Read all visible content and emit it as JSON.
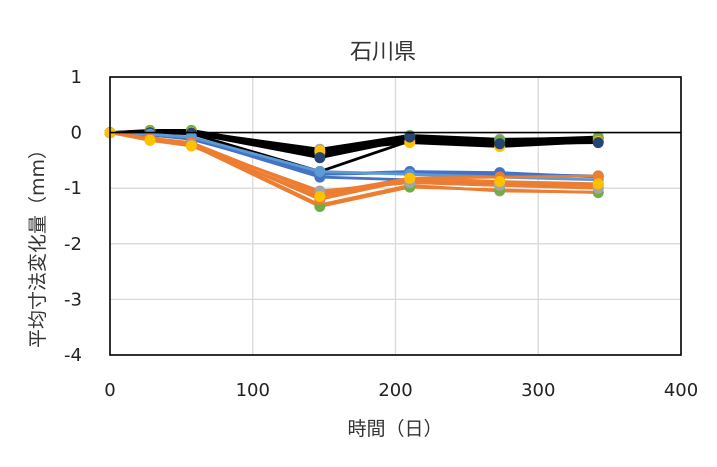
{
  "chart_data": {
    "type": "line",
    "title": "石川県",
    "xlabel": "時間（日）",
    "ylabel": "平均寸法変化量（mm）",
    "xlim": [
      0,
      400
    ],
    "ylim": [
      -4,
      1
    ],
    "x_ticks": [
      "0",
      "100",
      "200",
      "300",
      "400"
    ],
    "y_ticks": [
      "1",
      "0",
      "-1",
      "-2",
      "-3",
      "-4"
    ],
    "grid": true,
    "legend": "none",
    "x": [
      0,
      28,
      57,
      147,
      210,
      273,
      342
    ],
    "series": [
      {
        "color": "#000000",
        "marker": "#5a5a5a",
        "values": [
          0,
          0.03,
          0.03,
          -0.45,
          -0.12,
          -0.18,
          -0.12
        ]
      },
      {
        "color": "#000000",
        "marker": "#4f81bd",
        "values": [
          0,
          0.02,
          0.02,
          -0.4,
          -0.1,
          -0.16,
          -0.1
        ]
      },
      {
        "color": "#000000",
        "marker": "#8b6914",
        "values": [
          0,
          0.0,
          -0.02,
          -0.7,
          -0.15,
          -0.22,
          -0.15
        ]
      },
      {
        "color": "#000000",
        "marker": "#a5a5a5",
        "values": [
          0,
          0.03,
          0.02,
          -0.3,
          -0.05,
          -0.12,
          -0.1
        ]
      },
      {
        "color": "#000000",
        "marker": "#70ad47",
        "values": [
          0,
          0.04,
          0.04,
          -0.35,
          -0.06,
          -0.14,
          -0.08
        ]
      },
      {
        "color": "#000000",
        "marker": "#ffc000",
        "values": [
          0,
          0.01,
          0.0,
          -0.33,
          -0.18,
          -0.25,
          -0.16
        ]
      },
      {
        "color": "#000000",
        "marker": "#264478",
        "values": [
          0,
          0.0,
          -0.01,
          -0.45,
          -0.08,
          -0.2,
          -0.18
        ]
      },
      {
        "color": "#4472c4",
        "marker": "#1f3f6e",
        "values": [
          0,
          -0.05,
          -0.1,
          -0.75,
          -0.72,
          -0.75,
          -0.78
        ]
      },
      {
        "color": "#4472c4",
        "marker": "#4472c4",
        "values": [
          0,
          -0.05,
          -0.1,
          -0.8,
          -0.85,
          -0.95,
          -0.92
        ]
      },
      {
        "color": "#4472c4",
        "marker": "#4472c4",
        "values": [
          0,
          -0.04,
          -0.12,
          -0.75,
          -0.7,
          -0.72,
          -0.8
        ]
      },
      {
        "color": "#5b9bd5",
        "marker": "#5b9bd5",
        "values": [
          0,
          -0.03,
          -0.08,
          -0.7,
          -0.75,
          -0.8,
          -0.85
        ]
      },
      {
        "color": "#ed7d31",
        "marker": "#a5a5a5",
        "values": [
          0,
          -0.12,
          -0.2,
          -1.3,
          -0.95,
          -1.05,
          -1.07
        ]
      },
      {
        "color": "#ed7d31",
        "marker": "#70ad47",
        "values": [
          0,
          -0.12,
          -0.22,
          -1.33,
          -0.98,
          -1.03,
          -1.08
        ]
      },
      {
        "color": "#ed7d31",
        "marker": "#ed7d31",
        "values": [
          0,
          -0.1,
          -0.18,
          -1.1,
          -0.82,
          -0.8,
          -0.78
        ]
      },
      {
        "color": "#ed7d31",
        "marker": "#ed7d31",
        "values": [
          0,
          -0.12,
          -0.2,
          -1.2,
          -0.85,
          -0.9,
          -0.95
        ]
      },
      {
        "color": "#ed7d31",
        "marker": "#a5a5a5",
        "values": [
          0,
          -0.13,
          -0.22,
          -1.05,
          -0.9,
          -0.95,
          -1.0
        ]
      },
      {
        "color": "#ed7d31",
        "marker": "#ffc000",
        "values": [
          0,
          -0.14,
          -0.24,
          -1.15,
          -0.82,
          -0.88,
          -0.92
        ]
      }
    ]
  }
}
